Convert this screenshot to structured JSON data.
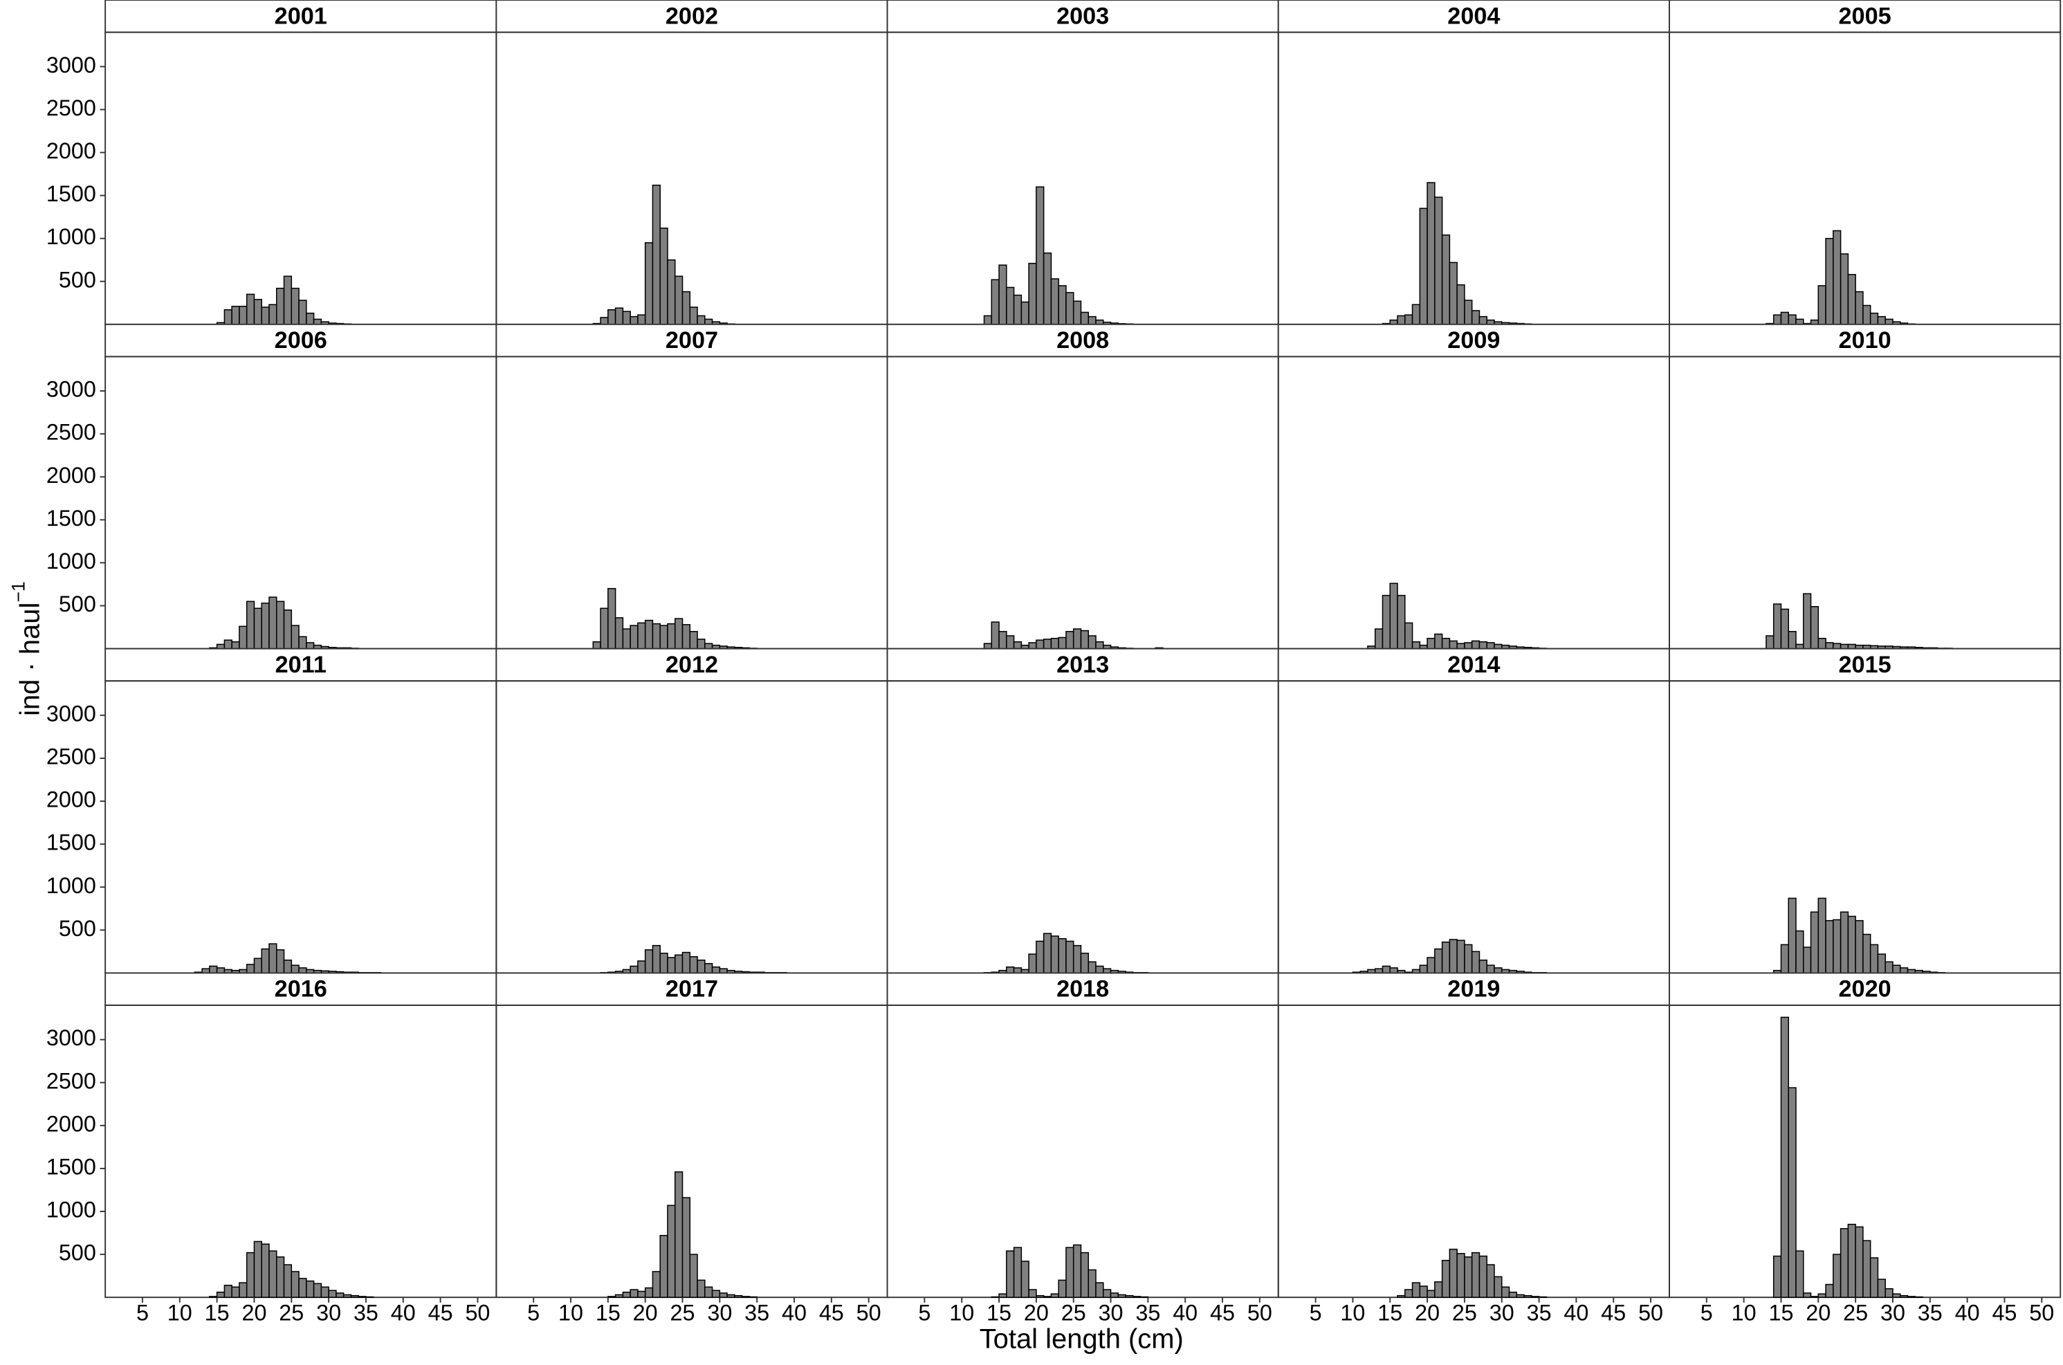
{
  "chart_data": {
    "type": "histogram",
    "x_label": "Total length (cm)",
    "y_label": "ind · haul",
    "y_label_superscript": "−1",
    "color": "#808080",
    "edge_color": "#000000",
    "bins": [
      9,
      10,
      11,
      12,
      13,
      14,
      15,
      16,
      17,
      18,
      19,
      20,
      21,
      22,
      23,
      24,
      25,
      26,
      27,
      28,
      29,
      30,
      31,
      32,
      33,
      34,
      35,
      36,
      37,
      38,
      39,
      40,
      41,
      42
    ],
    "xlim": [
      0,
      52.5
    ],
    "ylim": [
      0,
      3400
    ],
    "xticks": [
      5,
      10,
      15,
      20,
      25,
      30,
      35,
      40,
      45,
      50
    ],
    "yticks": [
      500,
      1000,
      1500,
      2000,
      2500,
      3000
    ],
    "facets": [
      {
        "title": "2001",
        "values": [
          0,
          0,
          0,
          0,
          0,
          0,
          20,
          170,
          210,
          210,
          350,
          290,
          200,
          230,
          420,
          560,
          420,
          280,
          130,
          60,
          30,
          15,
          10,
          5,
          0,
          0,
          0,
          0,
          0,
          0,
          0,
          0,
          0
        ]
      },
      {
        "title": "2002",
        "values": [
          0,
          0,
          0,
          0,
          10,
          80,
          170,
          190,
          150,
          90,
          110,
          950,
          1620,
          1120,
          750,
          560,
          380,
          200,
          100,
          60,
          30,
          15,
          5,
          0,
          0,
          0,
          0,
          0,
          0,
          0,
          0,
          0,
          0
        ]
      },
      {
        "title": "2003",
        "values": [
          0,
          0,
          0,
          0,
          100,
          520,
          690,
          430,
          340,
          260,
          710,
          1600,
          830,
          530,
          450,
          370,
          270,
          140,
          90,
          50,
          25,
          15,
          8,
          5,
          0,
          0,
          0,
          0,
          0,
          0,
          0,
          0,
          0
        ]
      },
      {
        "title": "2004",
        "values": [
          0,
          0,
          0,
          0,
          0,
          10,
          50,
          100,
          110,
          230,
          1350,
          1650,
          1480,
          1040,
          720,
          460,
          280,
          160,
          90,
          50,
          30,
          20,
          15,
          10,
          5,
          0,
          0,
          0,
          0,
          0,
          0,
          0,
          0
        ]
      },
      {
        "title": "2005",
        "values": [
          0,
          0,
          0,
          0,
          10,
          110,
          140,
          110,
          60,
          10,
          50,
          450,
          1000,
          1090,
          820,
          580,
          380,
          220,
          130,
          90,
          60,
          30,
          15,
          5,
          0,
          0,
          0,
          0,
          0,
          0,
          0,
          0,
          0
        ]
      },
      {
        "title": "2006",
        "values": [
          0,
          0,
          0,
          0,
          0,
          10,
          50,
          100,
          80,
          260,
          550,
          470,
          530,
          600,
          550,
          450,
          270,
          140,
          70,
          40,
          25,
          15,
          10,
          10,
          5,
          0,
          0,
          0,
          0,
          0,
          0,
          0,
          0
        ]
      },
      {
        "title": "2007",
        "values": [
          0,
          0,
          0,
          0,
          80,
          470,
          700,
          360,
          230,
          270,
          300,
          330,
          290,
          270,
          290,
          350,
          280,
          200,
          110,
          60,
          40,
          30,
          20,
          15,
          10,
          5,
          0,
          0,
          0,
          0,
          0,
          0,
          0
        ]
      },
      {
        "title": "2008",
        "values": [
          0,
          0,
          0,
          0,
          60,
          310,
          200,
          150,
          80,
          40,
          70,
          100,
          110,
          120,
          130,
          200,
          230,
          210,
          150,
          80,
          40,
          20,
          10,
          5,
          0,
          0,
          0,
          10,
          0,
          0,
          0,
          0,
          0
        ]
      },
      {
        "title": "2009",
        "values": [
          0,
          0,
          0,
          30,
          230,
          620,
          760,
          620,
          300,
          80,
          40,
          120,
          170,
          120,
          90,
          60,
          70,
          90,
          80,
          70,
          50,
          40,
          30,
          20,
          15,
          10,
          5,
          0,
          0,
          0,
          0,
          0,
          0
        ]
      },
      {
        "title": "2010",
        "values": [
          0,
          0,
          0,
          0,
          150,
          520,
          460,
          200,
          50,
          640,
          490,
          120,
          70,
          60,
          50,
          50,
          40,
          40,
          35,
          30,
          30,
          25,
          20,
          20,
          15,
          10,
          10,
          5,
          5,
          0,
          0,
          0,
          0
        ]
      },
      {
        "title": "2011",
        "values": [
          0,
          0,
          0,
          10,
          50,
          80,
          60,
          40,
          30,
          40,
          100,
          170,
          280,
          340,
          270,
          150,
          90,
          60,
          40,
          30,
          25,
          20,
          15,
          10,
          10,
          5,
          5,
          5,
          0,
          0,
          0,
          0,
          0
        ]
      },
      {
        "title": "2012",
        "values": [
          0,
          0,
          0,
          0,
          0,
          5,
          10,
          20,
          40,
          80,
          140,
          270,
          320,
          230,
          180,
          210,
          240,
          190,
          150,
          110,
          70,
          50,
          30,
          20,
          15,
          10,
          10,
          5,
          5,
          5,
          0,
          0,
          0
        ]
      },
      {
        "title": "2013",
        "values": [
          0,
          0,
          0,
          0,
          5,
          10,
          30,
          70,
          60,
          40,
          220,
          370,
          460,
          430,
          400,
          370,
          320,
          230,
          130,
          80,
          50,
          30,
          20,
          10,
          5,
          5,
          0,
          0,
          0,
          0,
          0,
          0,
          0
        ]
      },
      {
        "title": "2014",
        "values": [
          0,
          10,
          20,
          40,
          50,
          80,
          60,
          30,
          10,
          40,
          90,
          180,
          280,
          360,
          390,
          380,
          330,
          250,
          150,
          90,
          60,
          40,
          30,
          20,
          10,
          5,
          5,
          0,
          0,
          0,
          0,
          0,
          0
        ]
      },
      {
        "title": "2015",
        "values": [
          0,
          0,
          0,
          0,
          0,
          30,
          330,
          870,
          490,
          300,
          710,
          870,
          610,
          620,
          710,
          660,
          610,
          450,
          330,
          220,
          130,
          90,
          60,
          40,
          30,
          20,
          10,
          5,
          0,
          0,
          0,
          0,
          0
        ]
      },
      {
        "title": "2016",
        "values": [
          0,
          0,
          0,
          0,
          0,
          10,
          60,
          140,
          120,
          170,
          520,
          650,
          620,
          540,
          470,
          380,
          300,
          220,
          190,
          160,
          120,
          80,
          50,
          30,
          20,
          10,
          5,
          0,
          0,
          0,
          0,
          0,
          0
        ]
      },
      {
        "title": "2017",
        "values": [
          0,
          0,
          0,
          0,
          0,
          0,
          10,
          30,
          60,
          90,
          70,
          110,
          300,
          720,
          1070,
          1460,
          1160,
          500,
          200,
          120,
          80,
          50,
          30,
          20,
          10,
          5,
          0,
          0,
          0,
          0,
          0,
          0,
          0
        ]
      },
      {
        "title": "2018",
        "values": [
          0,
          0,
          0,
          0,
          0,
          5,
          40,
          540,
          580,
          420,
          90,
          20,
          10,
          40,
          200,
          580,
          610,
          520,
          320,
          170,
          90,
          50,
          30,
          20,
          10,
          5,
          0,
          0,
          0,
          0,
          0,
          0,
          0
        ]
      },
      {
        "title": "2019",
        "values": [
          0,
          0,
          0,
          0,
          0,
          0,
          0,
          20,
          90,
          170,
          130,
          80,
          180,
          430,
          560,
          510,
          470,
          520,
          480,
          380,
          240,
          120,
          60,
          30,
          20,
          10,
          5,
          0,
          0,
          0,
          0,
          0,
          0
        ]
      },
      {
        "title": "2020",
        "values": [
          0,
          0,
          0,
          0,
          0,
          480,
          3260,
          2440,
          540,
          50,
          10,
          40,
          150,
          500,
          800,
          850,
          820,
          660,
          460,
          210,
          100,
          40,
          20,
          10,
          5,
          0,
          0,
          0,
          0,
          0,
          0,
          0,
          0
        ]
      }
    ]
  }
}
